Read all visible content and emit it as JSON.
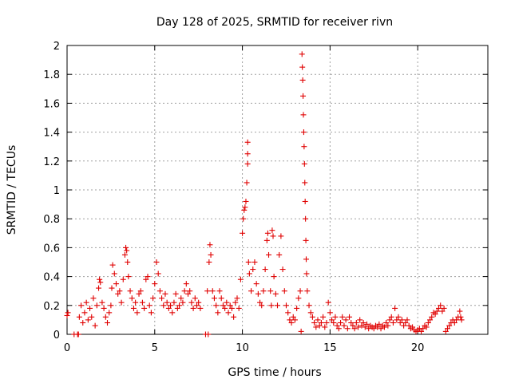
{
  "chart_data": {
    "type": "scatter",
    "title": "Day 128 of 2025, SRMTID for receiver rivn",
    "xlabel": "GPS time / hours",
    "ylabel": "SRMTID / TECUs",
    "xlim": [
      0,
      24
    ],
    "ylim": [
      0,
      2
    ],
    "x_ticks": [
      0,
      5,
      10,
      15,
      20
    ],
    "x_tick_labels": [
      "0",
      "5",
      "10",
      "15",
      "20"
    ],
    "y_ticks": [
      0,
      0.2,
      0.4,
      0.6,
      0.8,
      1,
      1.2,
      1.4,
      1.6,
      1.8,
      2
    ],
    "y_tick_labels": [
      "0",
      "0.2",
      "0.4",
      "0.6",
      "0.8",
      "1",
      "1.2",
      "1.4",
      "1.6",
      "1.8",
      "2"
    ],
    "grid": true,
    "marker": "+",
    "color": "#e00000",
    "series": [
      {
        "name": "SRMTID",
        "points": [
          [
            0.0,
            0.13
          ],
          [
            0.05,
            0.15
          ],
          [
            0.4,
            0.0
          ],
          [
            0.6,
            0.0
          ],
          [
            0.65,
            0.0
          ],
          [
            0.7,
            0.12
          ],
          [
            0.8,
            0.2
          ],
          [
            0.9,
            0.08
          ],
          [
            1.0,
            0.15
          ],
          [
            1.1,
            0.22
          ],
          [
            1.2,
            0.1
          ],
          [
            1.3,
            0.18
          ],
          [
            1.4,
            0.12
          ],
          [
            1.5,
            0.25
          ],
          [
            1.6,
            0.06
          ],
          [
            1.7,
            0.2
          ],
          [
            1.8,
            0.32
          ],
          [
            1.85,
            0.38
          ],
          [
            1.9,
            0.36
          ],
          [
            2.0,
            0.22
          ],
          [
            2.1,
            0.18
          ],
          [
            2.2,
            0.12
          ],
          [
            2.3,
            0.08
          ],
          [
            2.4,
            0.15
          ],
          [
            2.5,
            0.2
          ],
          [
            2.55,
            0.32
          ],
          [
            2.6,
            0.48
          ],
          [
            2.7,
            0.42
          ],
          [
            2.8,
            0.35
          ],
          [
            2.9,
            0.28
          ],
          [
            3.0,
            0.3
          ],
          [
            3.1,
            0.22
          ],
          [
            3.2,
            0.38
          ],
          [
            3.3,
            0.55
          ],
          [
            3.35,
            0.6
          ],
          [
            3.4,
            0.58
          ],
          [
            3.45,
            0.5
          ],
          [
            3.5,
            0.4
          ],
          [
            3.6,
            0.3
          ],
          [
            3.7,
            0.25
          ],
          [
            3.8,
            0.18
          ],
          [
            3.9,
            0.22
          ],
          [
            4.0,
            0.15
          ],
          [
            4.1,
            0.28
          ],
          [
            4.2,
            0.3
          ],
          [
            4.3,
            0.22
          ],
          [
            4.4,
            0.18
          ],
          [
            4.5,
            0.38
          ],
          [
            4.6,
            0.4
          ],
          [
            4.7,
            0.2
          ],
          [
            4.8,
            0.15
          ],
          [
            4.9,
            0.25
          ],
          [
            5.0,
            0.35
          ],
          [
            5.1,
            0.5
          ],
          [
            5.2,
            0.42
          ],
          [
            5.3,
            0.3
          ],
          [
            5.4,
            0.25
          ],
          [
            5.5,
            0.2
          ],
          [
            5.6,
            0.28
          ],
          [
            5.7,
            0.22
          ],
          [
            5.8,
            0.18
          ],
          [
            5.9,
            0.2
          ],
          [
            6.0,
            0.15
          ],
          [
            6.1,
            0.22
          ],
          [
            6.2,
            0.28
          ],
          [
            6.3,
            0.18
          ],
          [
            6.4,
            0.2
          ],
          [
            6.5,
            0.25
          ],
          [
            6.6,
            0.22
          ],
          [
            6.7,
            0.3
          ],
          [
            6.8,
            0.35
          ],
          [
            6.9,
            0.28
          ],
          [
            7.0,
            0.3
          ],
          [
            7.1,
            0.22
          ],
          [
            7.2,
            0.18
          ],
          [
            7.3,
            0.25
          ],
          [
            7.4,
            0.2
          ],
          [
            7.5,
            0.22
          ],
          [
            7.6,
            0.18
          ],
          [
            7.9,
            0.0
          ],
          [
            8.05,
            0.0
          ],
          [
            8.0,
            0.3
          ],
          [
            8.1,
            0.5
          ],
          [
            8.15,
            0.62
          ],
          [
            8.2,
            0.55
          ],
          [
            8.3,
            0.3
          ],
          [
            8.4,
            0.25
          ],
          [
            8.5,
            0.2
          ],
          [
            8.6,
            0.15
          ],
          [
            8.7,
            0.3
          ],
          [
            8.8,
            0.25
          ],
          [
            8.9,
            0.2
          ],
          [
            9.0,
            0.18
          ],
          [
            9.1,
            0.22
          ],
          [
            9.2,
            0.15
          ],
          [
            9.3,
            0.2
          ],
          [
            9.4,
            0.18
          ],
          [
            9.5,
            0.12
          ],
          [
            9.6,
            0.22
          ],
          [
            9.7,
            0.25
          ],
          [
            9.8,
            0.18
          ],
          [
            9.9,
            0.38
          ],
          [
            10.0,
            0.7
          ],
          [
            10.05,
            0.8
          ],
          [
            10.1,
            0.86
          ],
          [
            10.15,
            0.88
          ],
          [
            10.2,
            0.92
          ],
          [
            10.25,
            1.05
          ],
          [
            10.3,
            1.33
          ],
          [
            10.3,
            1.25
          ],
          [
            10.3,
            1.18
          ],
          [
            10.35,
            0.5
          ],
          [
            10.4,
            0.42
          ],
          [
            10.5,
            0.3
          ],
          [
            10.6,
            0.45
          ],
          [
            10.7,
            0.5
          ],
          [
            10.8,
            0.35
          ],
          [
            10.9,
            0.28
          ],
          [
            11.0,
            0.22
          ],
          [
            11.1,
            0.2
          ],
          [
            11.2,
            0.3
          ],
          [
            11.3,
            0.45
          ],
          [
            11.4,
            0.65
          ],
          [
            11.45,
            0.7
          ],
          [
            11.5,
            0.55
          ],
          [
            11.6,
            0.3
          ],
          [
            11.65,
            0.2
          ],
          [
            11.7,
            0.72
          ],
          [
            11.75,
            0.68
          ],
          [
            11.8,
            0.4
          ],
          [
            11.9,
            0.28
          ],
          [
            12.0,
            0.2
          ],
          [
            12.1,
            0.55
          ],
          [
            12.2,
            0.68
          ],
          [
            12.3,
            0.45
          ],
          [
            12.4,
            0.3
          ],
          [
            12.5,
            0.2
          ],
          [
            12.6,
            0.15
          ],
          [
            12.7,
            0.1
          ],
          [
            12.8,
            0.08
          ],
          [
            12.9,
            0.12
          ],
          [
            13.0,
            0.1
          ],
          [
            13.1,
            0.18
          ],
          [
            13.2,
            0.25
          ],
          [
            13.3,
            0.3
          ],
          [
            13.35,
            0.02
          ],
          [
            13.4,
            1.94
          ],
          [
            13.42,
            1.85
          ],
          [
            13.44,
            1.76
          ],
          [
            13.46,
            1.65
          ],
          [
            13.48,
            1.52
          ],
          [
            13.5,
            1.4
          ],
          [
            13.52,
            1.3
          ],
          [
            13.54,
            1.18
          ],
          [
            13.56,
            1.05
          ],
          [
            13.58,
            0.92
          ],
          [
            13.6,
            0.8
          ],
          [
            13.62,
            0.65
          ],
          [
            13.64,
            0.52
          ],
          [
            13.66,
            0.42
          ],
          [
            13.7,
            0.3
          ],
          [
            13.8,
            0.2
          ],
          [
            13.9,
            0.15
          ],
          [
            14.0,
            0.12
          ],
          [
            14.1,
            0.08
          ],
          [
            14.2,
            0.05
          ],
          [
            14.3,
            0.1
          ],
          [
            14.4,
            0.06
          ],
          [
            14.5,
            0.08
          ],
          [
            14.6,
            0.12
          ],
          [
            14.7,
            0.05
          ],
          [
            14.8,
            0.08
          ],
          [
            14.9,
            0.22
          ],
          [
            15.0,
            0.15
          ],
          [
            15.1,
            0.1
          ],
          [
            15.2,
            0.08
          ],
          [
            15.3,
            0.12
          ],
          [
            15.4,
            0.06
          ],
          [
            15.5,
            0.04
          ],
          [
            15.6,
            0.08
          ],
          [
            15.7,
            0.12
          ],
          [
            15.8,
            0.06
          ],
          [
            15.9,
            0.1
          ],
          [
            16.0,
            0.04
          ],
          [
            16.1,
            0.12
          ],
          [
            16.2,
            0.08
          ],
          [
            16.3,
            0.06
          ],
          [
            16.4,
            0.04
          ],
          [
            16.5,
            0.08
          ],
          [
            16.6,
            0.05
          ],
          [
            16.7,
            0.1
          ],
          [
            16.8,
            0.06
          ],
          [
            16.9,
            0.08
          ],
          [
            17.0,
            0.05
          ],
          [
            17.1,
            0.07
          ],
          [
            17.2,
            0.04
          ],
          [
            17.3,
            0.06
          ],
          [
            17.4,
            0.05
          ],
          [
            17.5,
            0.04
          ],
          [
            17.6,
            0.06
          ],
          [
            17.7,
            0.05
          ],
          [
            17.8,
            0.07
          ],
          [
            17.9,
            0.04
          ],
          [
            18.0,
            0.06
          ],
          [
            18.1,
            0.05
          ],
          [
            18.2,
            0.08
          ],
          [
            18.3,
            0.06
          ],
          [
            18.4,
            0.1
          ],
          [
            18.5,
            0.12
          ],
          [
            18.6,
            0.08
          ],
          [
            18.7,
            0.18
          ],
          [
            18.8,
            0.1
          ],
          [
            18.9,
            0.12
          ],
          [
            19.0,
            0.08
          ],
          [
            19.1,
            0.1
          ],
          [
            19.2,
            0.06
          ],
          [
            19.3,
            0.08
          ],
          [
            19.4,
            0.1
          ],
          [
            19.5,
            0.06
          ],
          [
            19.6,
            0.04
          ],
          [
            19.7,
            0.05
          ],
          [
            19.8,
            0.03
          ],
          [
            19.9,
            0.02
          ],
          [
            20.0,
            0.03
          ],
          [
            20.1,
            0.04
          ],
          [
            20.2,
            0.02
          ],
          [
            20.3,
            0.04
          ],
          [
            20.4,
            0.06
          ],
          [
            20.5,
            0.05
          ],
          [
            20.6,
            0.08
          ],
          [
            20.7,
            0.1
          ],
          [
            20.8,
            0.12
          ],
          [
            20.9,
            0.15
          ],
          [
            21.0,
            0.14
          ],
          [
            21.1,
            0.16
          ],
          [
            21.2,
            0.18
          ],
          [
            21.3,
            0.2
          ],
          [
            21.4,
            0.16
          ],
          [
            21.5,
            0.18
          ],
          [
            21.6,
            0.02
          ],
          [
            21.7,
            0.04
          ],
          [
            21.8,
            0.06
          ],
          [
            21.9,
            0.08
          ],
          [
            22.0,
            0.1
          ],
          [
            22.1,
            0.08
          ],
          [
            22.2,
            0.1
          ],
          [
            22.3,
            0.12
          ],
          [
            22.4,
            0.16
          ],
          [
            22.45,
            0.12
          ],
          [
            22.5,
            0.1
          ]
        ]
      }
    ]
  }
}
